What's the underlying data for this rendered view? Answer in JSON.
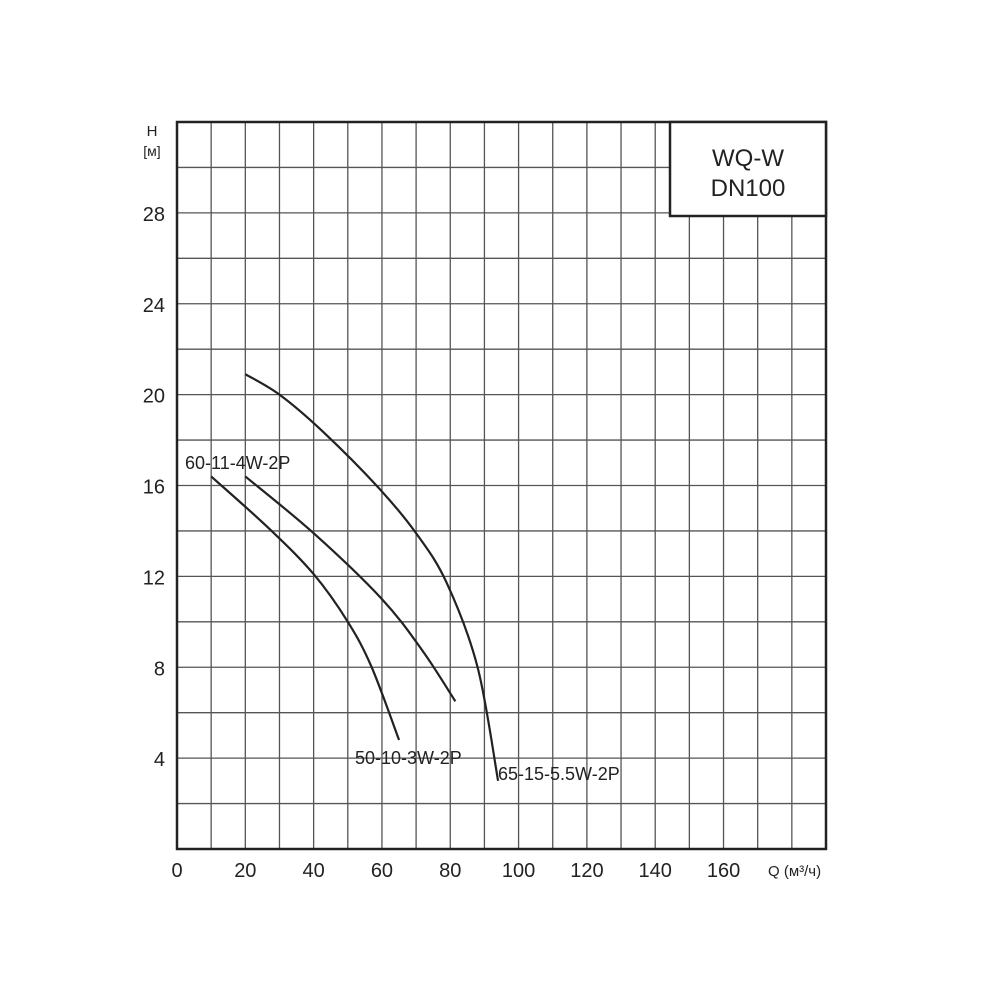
{
  "chart_data": {
    "type": "line",
    "title_box": [
      "WQ-W",
      "DN100"
    ],
    "ylabel": "H",
    "ylabel_unit": "[м]",
    "xlabel": "Q (м³/ч)",
    "xlim": [
      0,
      190
    ],
    "ylim": [
      0,
      32
    ],
    "x_ticks": [
      0,
      20,
      40,
      60,
      80,
      100,
      120,
      140,
      160
    ],
    "y_ticks": [
      4,
      8,
      12,
      16,
      20,
      24,
      28
    ],
    "x_grid_step": 10,
    "y_grid_step": 2,
    "grid": true,
    "line_color": "#222222",
    "series": [
      {
        "name": "50-10-3W-2P",
        "x": [
          10,
          27,
          40,
          50,
          57,
          65
        ],
        "y": [
          16.4,
          14.1,
          12.1,
          10.0,
          8.0,
          4.8
        ]
      },
      {
        "name": "60-11-4W-2P",
        "x": [
          20,
          40,
          60,
          72,
          81.5
        ],
        "y": [
          16.4,
          13.9,
          11.0,
          8.7,
          6.5
        ]
      },
      {
        "name": "65-15-5.5W-2P",
        "x": [
          20,
          30,
          42.5,
          59,
          70,
          79,
          88,
          94
        ],
        "y": [
          20.9,
          20.0,
          18.4,
          15.9,
          13.9,
          11.7,
          8.0,
          3.0
        ]
      }
    ]
  }
}
